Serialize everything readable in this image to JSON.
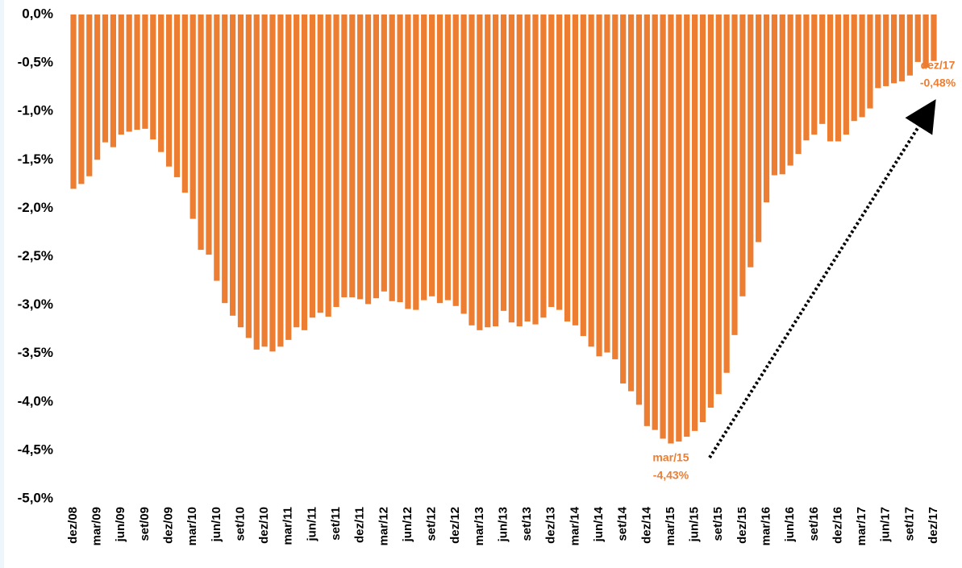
{
  "chart_data": {
    "type": "bar",
    "color": "#ED7D31",
    "categories": [
      "dez/08",
      null,
      null,
      "mar/09",
      null,
      null,
      "jun/09",
      null,
      null,
      "set/09",
      null,
      null,
      "dez/09",
      null,
      null,
      "mar/10",
      null,
      null,
      "jun/10",
      null,
      null,
      "set/10",
      null,
      null,
      "dez/10",
      null,
      null,
      "mar/11",
      null,
      null,
      "jun/11",
      null,
      null,
      "set/11",
      null,
      null,
      "dez/11",
      null,
      null,
      "mar/12",
      null,
      null,
      "jun/12",
      null,
      null,
      "set/12",
      null,
      null,
      "dez/12",
      null,
      null,
      "mar/13",
      null,
      null,
      "jun/13",
      null,
      null,
      "set/13",
      null,
      null,
      "dez/13",
      null,
      null,
      "mar/14",
      null,
      null,
      "jun/14",
      null,
      null,
      "set/14",
      null,
      null,
      "dez/14",
      null,
      null,
      "mar/15",
      null,
      null,
      "jun/15",
      null,
      null,
      "set/15",
      null,
      null,
      "dez/15",
      null,
      null,
      "mar/16",
      null,
      null,
      "jun/16",
      null,
      null,
      "set/16",
      null,
      null,
      "dez/16",
      null,
      null,
      "mar/17",
      null,
      null,
      "jun/17",
      null,
      null,
      "set/17",
      null,
      null,
      "dez/17"
    ],
    "values": [
      -1.8,
      -1.75,
      -1.67,
      -1.5,
      -1.32,
      -1.37,
      -1.24,
      -1.21,
      -1.19,
      -1.18,
      -1.29,
      -1.42,
      -1.57,
      -1.68,
      -1.84,
      -2.11,
      -2.43,
      -2.48,
      -2.75,
      -2.98,
      -3.11,
      -3.23,
      -3.34,
      -3.46,
      -3.43,
      -3.48,
      -3.43,
      -3.36,
      -3.23,
      -3.26,
      -3.13,
      -3.08,
      -3.12,
      -3.02,
      -2.92,
      -2.92,
      -2.94,
      -2.99,
      -2.93,
      -2.86,
      -2.96,
      -2.97,
      -3.04,
      -3.05,
      -2.95,
      -2.91,
      -2.98,
      -2.95,
      -3.01,
      -3.09,
      -3.21,
      -3.26,
      -3.23,
      -3.22,
      -3.06,
      -3.18,
      -3.22,
      -3.17,
      -3.2,
      -3.13,
      -3.02,
      -3.05,
      -3.17,
      -3.21,
      -3.32,
      -3.43,
      -3.53,
      -3.49,
      -3.56,
      -3.81,
      -3.89,
      -4.03,
      -4.25,
      -4.29,
      -4.38,
      -4.43,
      -4.41,
      -4.36,
      -4.3,
      -4.21,
      -4.06,
      -3.92,
      -3.7,
      -3.31,
      -2.91,
      -2.61,
      -2.35,
      -1.94,
      -1.66,
      -1.65,
      -1.56,
      -1.44,
      -1.3,
      -1.24,
      -1.13,
      -1.31,
      -1.31,
      -1.24,
      -1.1,
      -1.06,
      -0.97,
      -0.76,
      -0.74,
      -0.71,
      -0.69,
      -0.63,
      -0.49,
      -0.55,
      -0.48
    ],
    "ylim": [
      -5,
      0
    ],
    "yticks": [
      {
        "value": 0,
        "label": "0,0%"
      },
      {
        "value": -0.5,
        "label": "-0,5%"
      },
      {
        "value": -1,
        "label": "-1,0%"
      },
      {
        "value": -1.5,
        "label": "-1,5%"
      },
      {
        "value": -2,
        "label": "-2,0%"
      },
      {
        "value": -2.5,
        "label": "-2,5%"
      },
      {
        "value": -3,
        "label": "-3,0%"
      },
      {
        "value": -3.5,
        "label": "-3,5%"
      },
      {
        "value": -4,
        "label": "-4,0%"
      },
      {
        "value": -4.5,
        "label": "-4,5%"
      },
      {
        "value": -5,
        "label": "-5,0%"
      }
    ],
    "grid": false,
    "annotations": [
      {
        "category": "mar/15",
        "label": "-4,43%"
      },
      {
        "category": "dez/17",
        "label": "-0,48%"
      }
    ]
  }
}
